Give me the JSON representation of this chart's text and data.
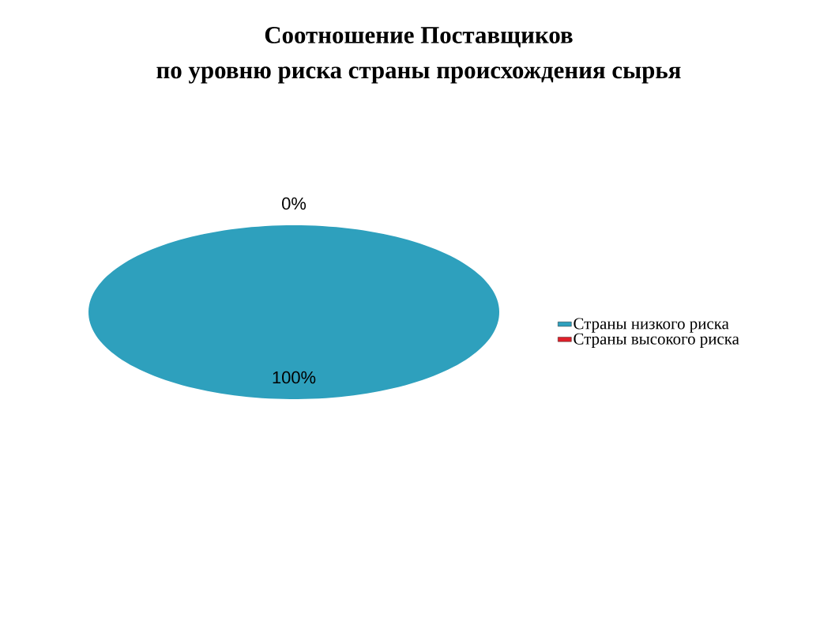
{
  "chart_data": {
    "type": "pie",
    "title": "Соотношение Поставщиков",
    "subtitle": "по уровню риска страны происхождения сырья",
    "categories": [
      "Страны низкого риска",
      "Страны высокого риска"
    ],
    "values": [
      100,
      0
    ],
    "colors": [
      "#2ea0bd",
      "#e0202a"
    ],
    "value_labels": [
      "100%",
      "0%"
    ],
    "legend": "right"
  }
}
